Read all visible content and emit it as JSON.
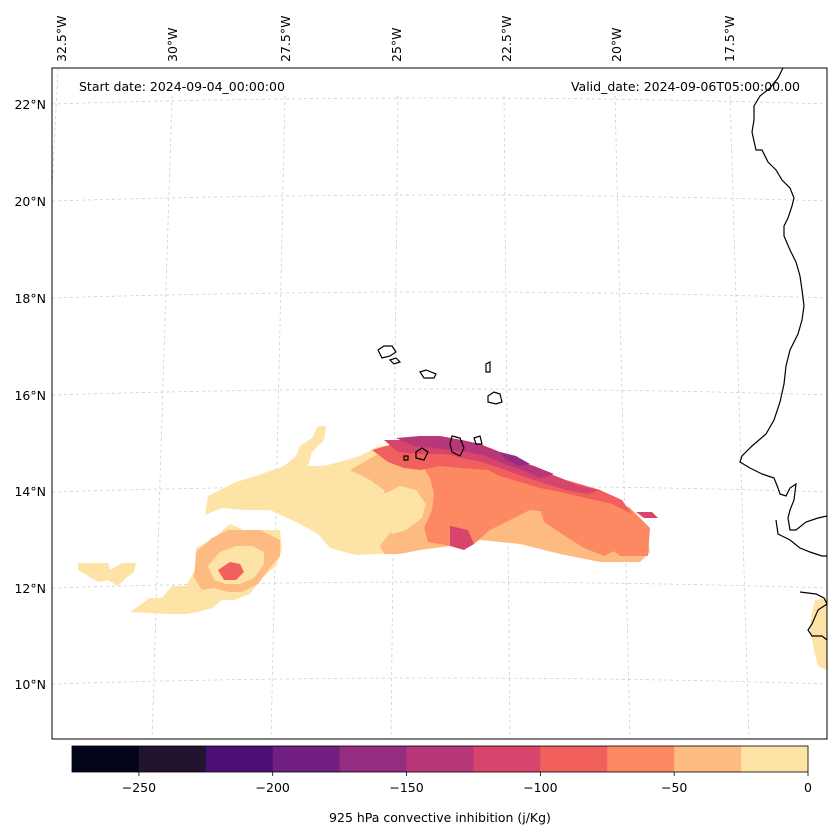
{
  "annotations": {
    "start_date": "Start date: 2024-09-04_00:00:00",
    "valid_date": "Valid_date: 2024-09-06T05:00:00.00"
  },
  "longitude_labels": [
    "32.5°W",
    "30°W",
    "27.5°W",
    "25°W",
    "22.5°W",
    "20°W",
    "17.5°W"
  ],
  "latitude_labels": [
    "22°N",
    "20°N",
    "18°N",
    "16°N",
    "14°N",
    "12°N",
    "10°N"
  ],
  "colorbar": {
    "label": "925 hPa convective inhibition (j/Kg)",
    "tick_labels": [
      "−250",
      "−200",
      "−150",
      "−100",
      "−50",
      "0"
    ],
    "bins": [
      -275,
      -250,
      -225,
      -200,
      -175,
      -150,
      -125,
      -100,
      -75,
      -50,
      -25,
      0
    ],
    "colors": [
      "#03051a",
      "#221331",
      "#4c0f73",
      "#711f81",
      "#942c80",
      "#b73779",
      "#d8456c",
      "#f1605d",
      "#fc8961",
      "#febb81",
      "#fde3a5"
    ]
  },
  "colors": {
    "gridline": "#c8c8c8",
    "coastline": "#000000"
  }
}
